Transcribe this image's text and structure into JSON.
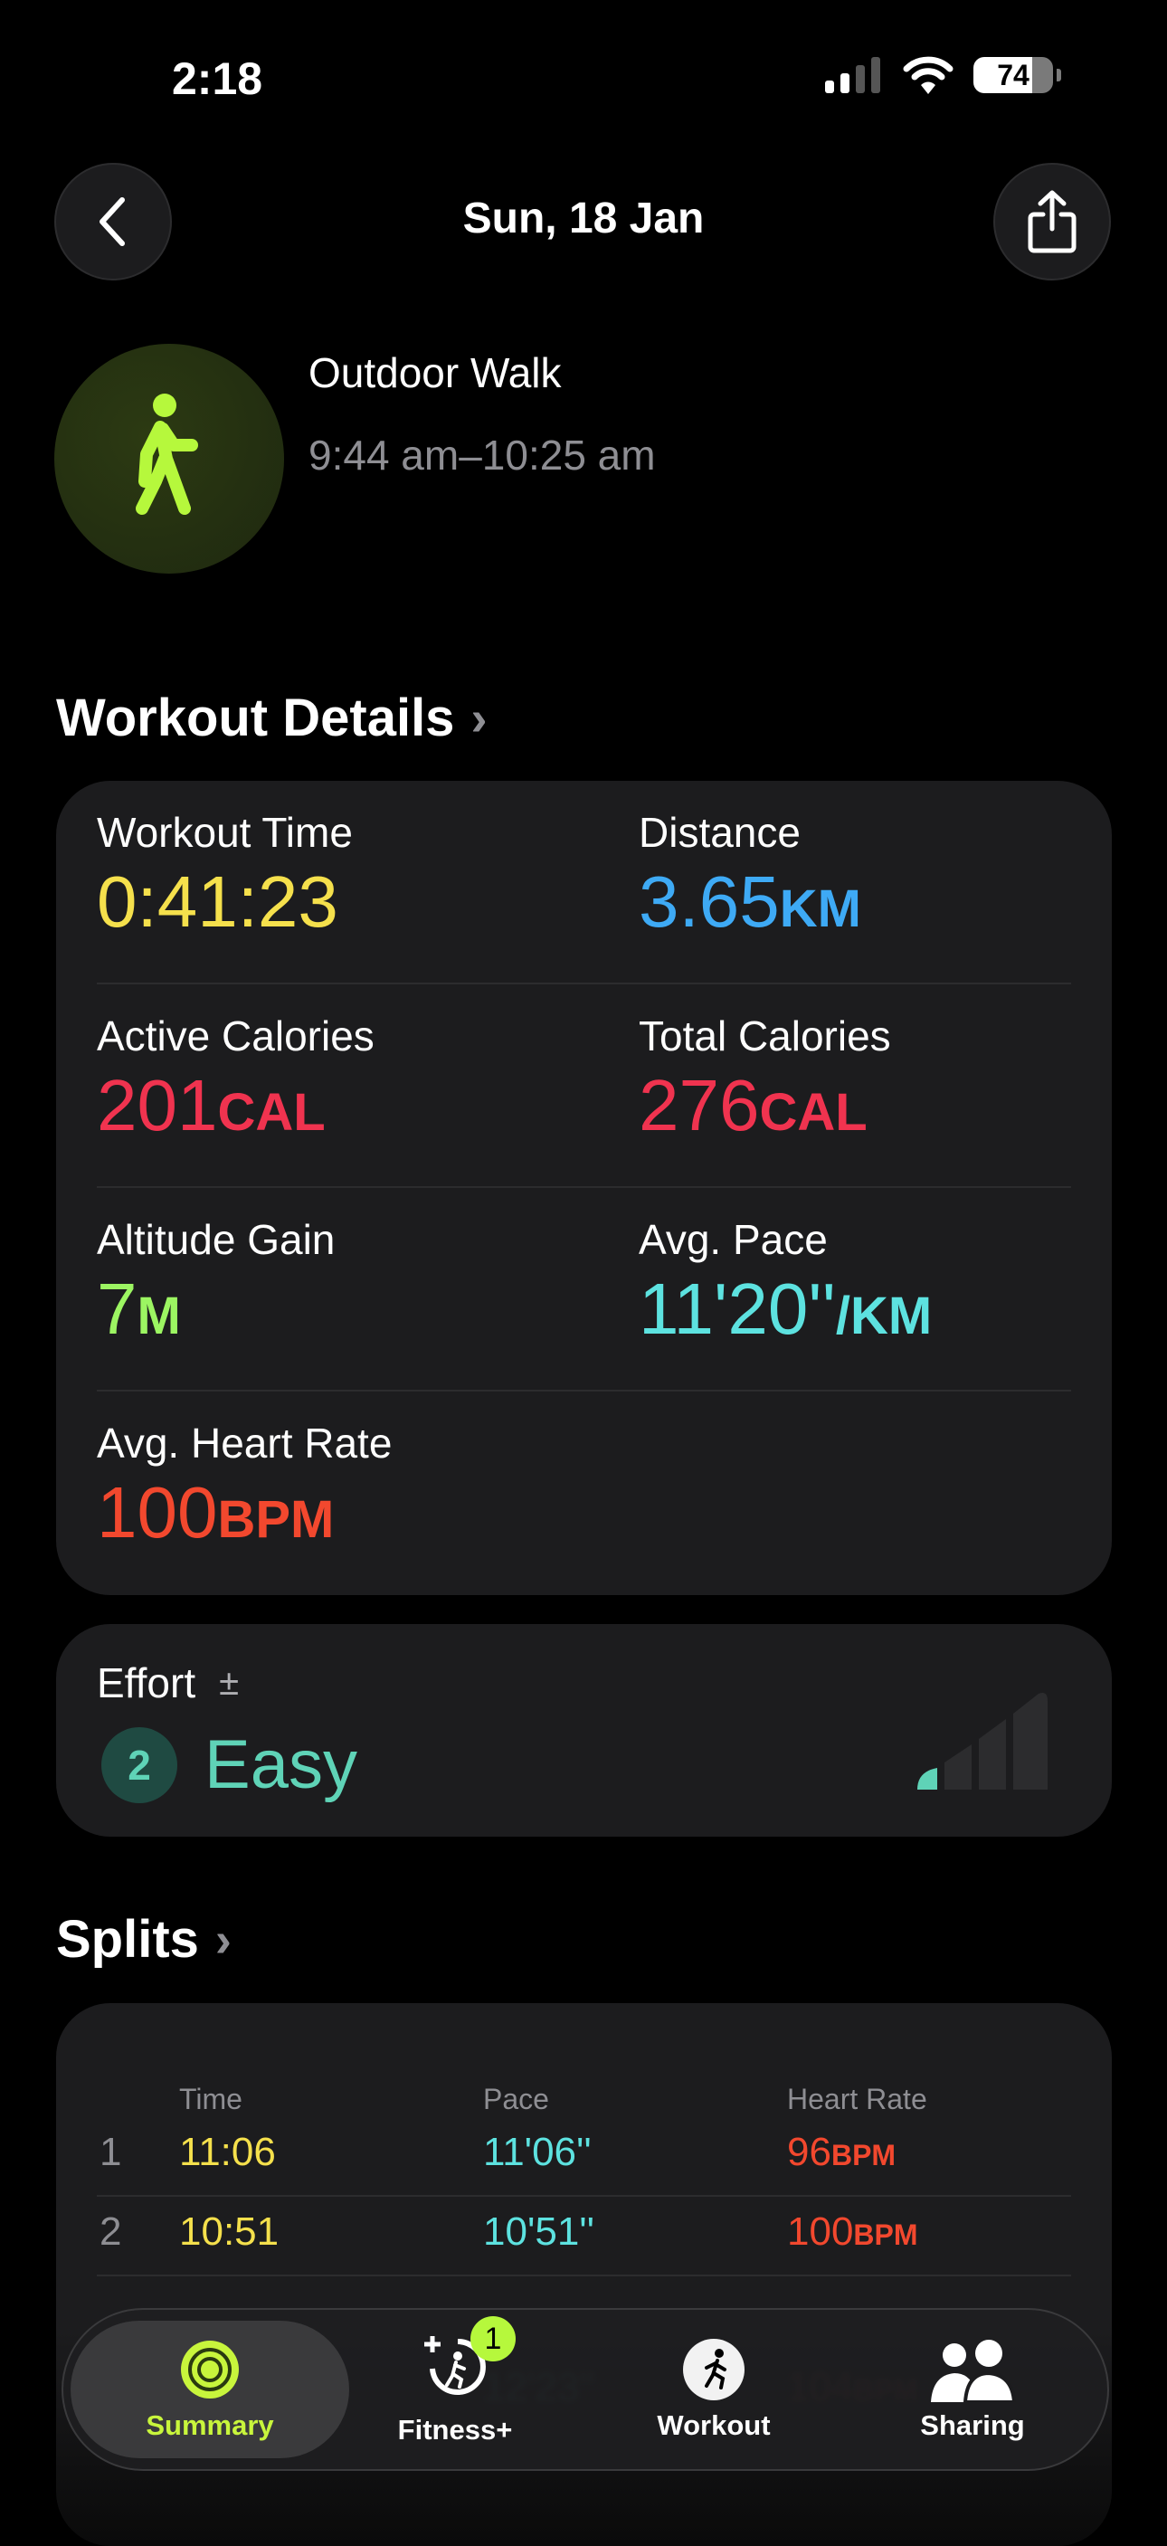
{
  "status_bar": {
    "time": "2:18",
    "battery": "74"
  },
  "nav": {
    "title": "Sun, 18 Jan",
    "back_icon": "chevron-left-icon",
    "share_icon": "share-icon"
  },
  "workout": {
    "type": "Outdoor Walk",
    "time_range": "9:44 am–10:25 am",
    "icon": "figure-walk-icon",
    "accent": "#b6f83c"
  },
  "details": {
    "title": "Workout Details",
    "metrics": [
      {
        "label": "Workout Time",
        "value": "0:41:23",
        "unit": "",
        "color": "#f5e04c"
      },
      {
        "label": "Distance",
        "value": "3.65",
        "unit": "KM",
        "color": "#3eaaf5"
      },
      {
        "label": "Active Calories",
        "value": "201",
        "unit": "CAL",
        "color": "#f0334f"
      },
      {
        "label": "Total Calories",
        "value": "276",
        "unit": "CAL",
        "color": "#f0334f"
      },
      {
        "label": "Altitude Gain",
        "value": "7",
        "unit": "M",
        "color": "#9cf562"
      },
      {
        "label": "Avg. Pace",
        "value": "11'20''",
        "unit": "/KM",
        "color": "#5de2e0"
      },
      {
        "label": "Avg. Heart Rate",
        "value": "100",
        "unit": "BPM",
        "color": "#f2482e"
      }
    ]
  },
  "effort": {
    "label": "Effort",
    "adjust_symbol": "±",
    "level": "2",
    "description": "Easy",
    "level_fraction": 0.2,
    "color": "#5fd3b7"
  },
  "splits": {
    "title": "Splits",
    "headers": [
      "Time",
      "Pace",
      "Heart Rate"
    ],
    "rows": [
      {
        "n": "1",
        "time": "11:06",
        "pace": "11'06''",
        "hr": "96",
        "unit": "BPM"
      },
      {
        "n": "2",
        "time": "10:51",
        "pace": "10'51''",
        "hr": "100",
        "unit": "BPM"
      },
      {
        "n": "4",
        "time": "",
        "pace": "12'23''",
        "hr": "104",
        "unit": "BPM"
      }
    ]
  },
  "tabs": [
    {
      "label": "Summary",
      "icon": "activity-rings-icon",
      "active": true
    },
    {
      "label": "Fitness+",
      "icon": "fitness-plus-icon",
      "badge": "1"
    },
    {
      "label": "Workout",
      "icon": "workout-runner-icon"
    },
    {
      "label": "Sharing",
      "icon": "sharing-people-icon"
    }
  ]
}
